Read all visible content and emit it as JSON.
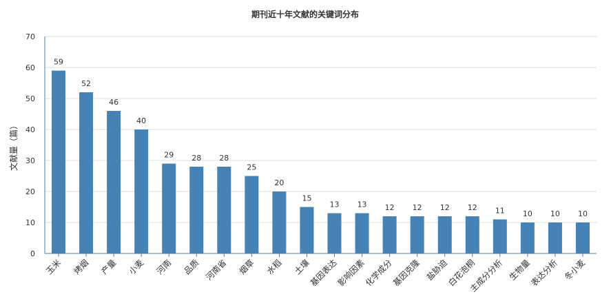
{
  "chart_data": {
    "type": "bar",
    "title": "期刊近十年文献的关键词分布",
    "ylabel": "文献量（篇）",
    "xlabel": "",
    "ylim": [
      0,
      70
    ],
    "yticks": [
      0,
      10,
      20,
      30,
      40,
      50,
      60,
      70
    ],
    "grid": true,
    "legend": "none",
    "bar_color": "#4682b4",
    "categories": [
      "玉米",
      "烤烟",
      "产量",
      "小麦",
      "河南",
      "品质",
      "河南省",
      "烟草",
      "水稻",
      "土壤",
      "基因表达",
      "影响因素",
      "化学成分",
      "基因克隆",
      "盐胁迫",
      "白花泡桐",
      "主成分分析",
      "生物量",
      "表达分析",
      "冬小麦"
    ],
    "values": [
      59,
      52,
      46,
      40,
      29,
      28,
      28,
      25,
      20,
      15,
      13,
      13,
      12,
      12,
      12,
      12,
      11,
      10,
      10,
      10
    ]
  }
}
